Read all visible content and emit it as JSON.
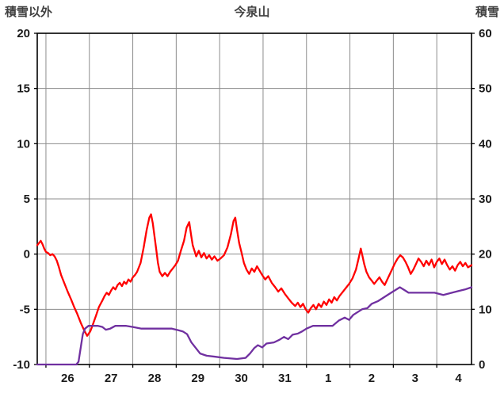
{
  "colors": {
    "background": "#ffffff",
    "grid": "#8c8c8c",
    "border": "#000000",
    "text": "#404040",
    "temperature_line": "#FF0000",
    "snow_line": "#7030A0"
  },
  "chart_data": {
    "type": "line",
    "title": "今泉山",
    "legend": "none",
    "grid": true,
    "left_axis": {
      "label": "積雪以外",
      "min": -10,
      "max": 20,
      "ticks": [
        20,
        15,
        10,
        5,
        0,
        -5,
        -10
      ]
    },
    "right_axis": {
      "label": "積雪",
      "min": 0,
      "max": 60,
      "ticks": [
        60,
        50,
        40,
        30,
        20,
        10,
        0
      ]
    },
    "x_axis": {
      "range": [
        0,
        10
      ],
      "gridlines": [
        0.2,
        1.2,
        2.2,
        3.2,
        4.2,
        5.2,
        6.2,
        7.2,
        8.2,
        9.2
      ],
      "tick_labels": [
        "26",
        "27",
        "28",
        "29",
        "30",
        "31",
        "1",
        "2",
        "3",
        "4"
      ],
      "tick_positions": [
        0.7,
        1.7,
        2.7,
        3.7,
        4.7,
        5.7,
        6.7,
        7.7,
        8.7,
        9.7
      ]
    },
    "series": [
      {
        "name": "積雪以外",
        "axis": "left",
        "color": "#FF0000",
        "points": [
          [
            0.0,
            0.8
          ],
          [
            0.04,
            1.0
          ],
          [
            0.08,
            1.2
          ],
          [
            0.12,
            0.9
          ],
          [
            0.16,
            0.5
          ],
          [
            0.2,
            0.2
          ],
          [
            0.25,
            0.1
          ],
          [
            0.3,
            -0.1
          ],
          [
            0.35,
            0.0
          ],
          [
            0.4,
            -0.2
          ],
          [
            0.45,
            -0.6
          ],
          [
            0.5,
            -1.2
          ],
          [
            0.55,
            -1.9
          ],
          [
            0.62,
            -2.6
          ],
          [
            0.7,
            -3.4
          ],
          [
            0.78,
            -4.1
          ],
          [
            0.85,
            -4.8
          ],
          [
            0.92,
            -5.4
          ],
          [
            1.0,
            -6.2
          ],
          [
            1.08,
            -6.9
          ],
          [
            1.15,
            -7.4
          ],
          [
            1.22,
            -7.0
          ],
          [
            1.28,
            -6.4
          ],
          [
            1.35,
            -5.6
          ],
          [
            1.42,
            -4.8
          ],
          [
            1.5,
            -4.2
          ],
          [
            1.55,
            -3.8
          ],
          [
            1.6,
            -3.5
          ],
          [
            1.65,
            -3.7
          ],
          [
            1.7,
            -3.3
          ],
          [
            1.75,
            -3.0
          ],
          [
            1.8,
            -3.2
          ],
          [
            1.85,
            -2.8
          ],
          [
            1.9,
            -2.6
          ],
          [
            1.95,
            -2.9
          ],
          [
            2.0,
            -2.5
          ],
          [
            2.05,
            -2.7
          ],
          [
            2.1,
            -2.3
          ],
          [
            2.15,
            -2.5
          ],
          [
            2.2,
            -2.1
          ],
          [
            2.25,
            -1.9
          ],
          [
            2.3,
            -1.6
          ],
          [
            2.38,
            -0.8
          ],
          [
            2.45,
            0.6
          ],
          [
            2.52,
            2.2
          ],
          [
            2.58,
            3.3
          ],
          [
            2.62,
            3.6
          ],
          [
            2.66,
            2.8
          ],
          [
            2.7,
            1.6
          ],
          [
            2.74,
            0.4
          ],
          [
            2.78,
            -0.8
          ],
          [
            2.82,
            -1.6
          ],
          [
            2.88,
            -2.0
          ],
          [
            2.94,
            -1.7
          ],
          [
            3.0,
            -2.0
          ],
          [
            3.06,
            -1.6
          ],
          [
            3.12,
            -1.3
          ],
          [
            3.18,
            -1.0
          ],
          [
            3.24,
            -0.6
          ],
          [
            3.3,
            0.2
          ],
          [
            3.38,
            1.2
          ],
          [
            3.44,
            2.4
          ],
          [
            3.5,
            2.9
          ],
          [
            3.54,
            1.8
          ],
          [
            3.58,
            0.8
          ],
          [
            3.62,
            0.3
          ],
          [
            3.66,
            -0.2
          ],
          [
            3.72,
            0.3
          ],
          [
            3.78,
            -0.3
          ],
          [
            3.84,
            0.1
          ],
          [
            3.9,
            -0.4
          ],
          [
            3.96,
            -0.1
          ],
          [
            4.02,
            -0.5
          ],
          [
            4.08,
            -0.2
          ],
          [
            4.15,
            -0.6
          ],
          [
            4.22,
            -0.4
          ],
          [
            4.3,
            -0.1
          ],
          [
            4.38,
            0.6
          ],
          [
            4.46,
            1.8
          ],
          [
            4.52,
            3.0
          ],
          [
            4.56,
            3.3
          ],
          [
            4.6,
            2.2
          ],
          [
            4.65,
            1.0
          ],
          [
            4.7,
            0.2
          ],
          [
            4.76,
            -0.8
          ],
          [
            4.82,
            -1.4
          ],
          [
            4.88,
            -1.8
          ],
          [
            4.94,
            -1.3
          ],
          [
            5.0,
            -1.6
          ],
          [
            5.06,
            -1.1
          ],
          [
            5.12,
            -1.5
          ],
          [
            5.18,
            -1.9
          ],
          [
            5.25,
            -2.3
          ],
          [
            5.32,
            -2.0
          ],
          [
            5.4,
            -2.6
          ],
          [
            5.48,
            -3.0
          ],
          [
            5.55,
            -3.4
          ],
          [
            5.62,
            -3.1
          ],
          [
            5.7,
            -3.6
          ],
          [
            5.78,
            -4.0
          ],
          [
            5.86,
            -4.4
          ],
          [
            5.94,
            -4.7
          ],
          [
            6.0,
            -4.4
          ],
          [
            6.06,
            -4.8
          ],
          [
            6.12,
            -4.5
          ],
          [
            6.18,
            -5.0
          ],
          [
            6.24,
            -5.3
          ],
          [
            6.3,
            -4.9
          ],
          [
            6.36,
            -4.6
          ],
          [
            6.42,
            -5.0
          ],
          [
            6.48,
            -4.5
          ],
          [
            6.54,
            -4.8
          ],
          [
            6.6,
            -4.3
          ],
          [
            6.66,
            -4.6
          ],
          [
            6.72,
            -4.1
          ],
          [
            6.78,
            -4.4
          ],
          [
            6.84,
            -3.9
          ],
          [
            6.9,
            -4.2
          ],
          [
            6.96,
            -3.8
          ],
          [
            7.02,
            -3.5
          ],
          [
            7.1,
            -3.1
          ],
          [
            7.18,
            -2.7
          ],
          [
            7.26,
            -2.2
          ],
          [
            7.34,
            -1.4
          ],
          [
            7.4,
            -0.4
          ],
          [
            7.45,
            0.5
          ],
          [
            7.49,
            -0.2
          ],
          [
            7.53,
            -0.9
          ],
          [
            7.58,
            -1.6
          ],
          [
            7.64,
            -2.1
          ],
          [
            7.7,
            -2.4
          ],
          [
            7.76,
            -2.7
          ],
          [
            7.82,
            -2.4
          ],
          [
            7.88,
            -2.1
          ],
          [
            7.94,
            -2.5
          ],
          [
            8.0,
            -2.8
          ],
          [
            8.06,
            -2.3
          ],
          [
            8.12,
            -1.8
          ],
          [
            8.18,
            -1.3
          ],
          [
            8.24,
            -0.8
          ],
          [
            8.3,
            -0.4
          ],
          [
            8.36,
            -0.1
          ],
          [
            8.42,
            -0.3
          ],
          [
            8.48,
            -0.7
          ],
          [
            8.54,
            -1.2
          ],
          [
            8.6,
            -1.8
          ],
          [
            8.66,
            -1.4
          ],
          [
            8.72,
            -0.9
          ],
          [
            8.78,
            -0.4
          ],
          [
            8.84,
            -0.7
          ],
          [
            8.9,
            -1.1
          ],
          [
            8.96,
            -0.6
          ],
          [
            9.02,
            -1.0
          ],
          [
            9.08,
            -0.5
          ],
          [
            9.14,
            -1.2
          ],
          [
            9.2,
            -0.7
          ],
          [
            9.26,
            -0.4
          ],
          [
            9.32,
            -0.9
          ],
          [
            9.38,
            -0.5
          ],
          [
            9.44,
            -1.0
          ],
          [
            9.5,
            -1.4
          ],
          [
            9.56,
            -1.1
          ],
          [
            9.62,
            -1.5
          ],
          [
            9.68,
            -1.0
          ],
          [
            9.74,
            -0.7
          ],
          [
            9.8,
            -1.1
          ],
          [
            9.86,
            -0.8
          ],
          [
            9.92,
            -1.2
          ],
          [
            10.0,
            -1.0
          ]
        ]
      },
      {
        "name": "積雪",
        "axis": "right",
        "color": "#7030A0",
        "points": [
          [
            0.0,
            0
          ],
          [
            0.9,
            0
          ],
          [
            0.95,
            0.5
          ],
          [
            1.0,
            3
          ],
          [
            1.05,
            5.5
          ],
          [
            1.1,
            6.5
          ],
          [
            1.18,
            7
          ],
          [
            1.4,
            7
          ],
          [
            1.5,
            6.8
          ],
          [
            1.58,
            6.3
          ],
          [
            1.68,
            6.5
          ],
          [
            1.8,
            7
          ],
          [
            2.05,
            7
          ],
          [
            2.2,
            6.8
          ],
          [
            2.4,
            6.5
          ],
          [
            3.1,
            6.5
          ],
          [
            3.25,
            6.2
          ],
          [
            3.35,
            6.0
          ],
          [
            3.45,
            5.5
          ],
          [
            3.55,
            4.0
          ],
          [
            3.65,
            3.0
          ],
          [
            3.75,
            2.0
          ],
          [
            3.9,
            1.6
          ],
          [
            4.1,
            1.4
          ],
          [
            4.3,
            1.2
          ],
          [
            4.6,
            1.0
          ],
          [
            4.8,
            1.2
          ],
          [
            4.9,
            2.0
          ],
          [
            5.0,
            3.0
          ],
          [
            5.08,
            3.5
          ],
          [
            5.18,
            3.1
          ],
          [
            5.28,
            3.8
          ],
          [
            5.45,
            4.0
          ],
          [
            5.58,
            4.5
          ],
          [
            5.68,
            5.0
          ],
          [
            5.78,
            4.6
          ],
          [
            5.88,
            5.4
          ],
          [
            6.0,
            5.6
          ],
          [
            6.1,
            6.0
          ],
          [
            6.2,
            6.5
          ],
          [
            6.35,
            7.0
          ],
          [
            6.8,
            7.0
          ],
          [
            6.95,
            8.0
          ],
          [
            7.08,
            8.5
          ],
          [
            7.18,
            8.1
          ],
          [
            7.28,
            9.0
          ],
          [
            7.38,
            9.5
          ],
          [
            7.48,
            10.0
          ],
          [
            7.6,
            10.2
          ],
          [
            7.7,
            11.0
          ],
          [
            7.85,
            11.5
          ],
          [
            7.95,
            12.0
          ],
          [
            8.05,
            12.5
          ],
          [
            8.15,
            13.0
          ],
          [
            8.35,
            14.0
          ],
          [
            8.45,
            13.5
          ],
          [
            8.55,
            13.0
          ],
          [
            9.15,
            13.0
          ],
          [
            9.35,
            12.6
          ],
          [
            9.55,
            13.0
          ],
          [
            9.7,
            13.3
          ],
          [
            9.85,
            13.6
          ],
          [
            10.0,
            14.0
          ]
        ]
      }
    ]
  }
}
